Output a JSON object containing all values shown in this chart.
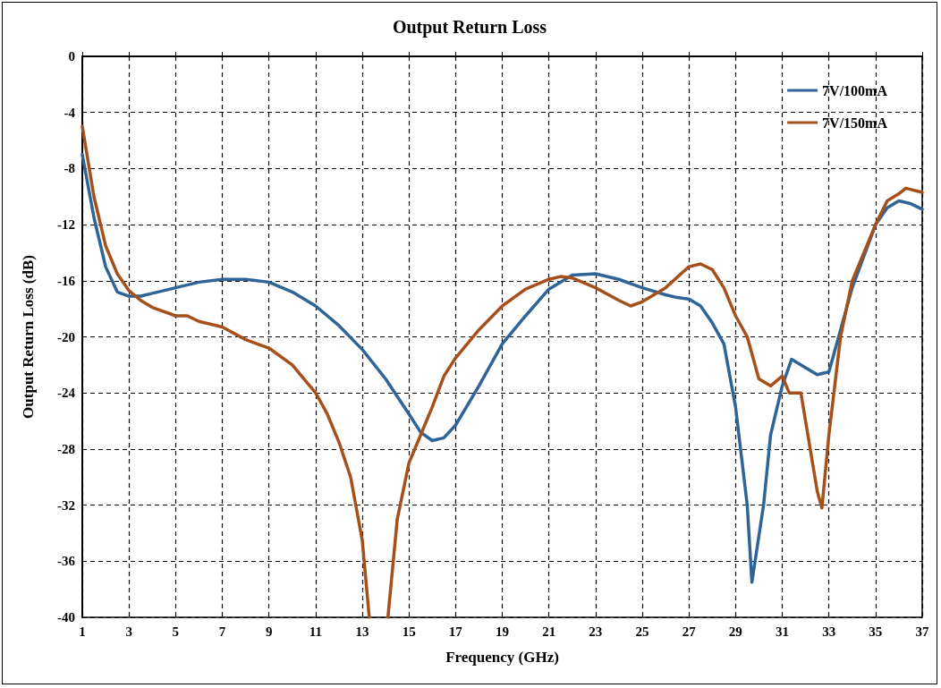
{
  "chart_data": {
    "type": "line",
    "title": "Output Return Loss",
    "xlabel": "Frequency (GHz)",
    "ylabel": "Output Return Loss (dB)",
    "xlim": [
      1,
      37
    ],
    "xticks": [
      1,
      3,
      5,
      7,
      9,
      11,
      13,
      15,
      17,
      19,
      21,
      23,
      25,
      27,
      29,
      31,
      33,
      35,
      37
    ],
    "ylim": [
      -40,
      0
    ],
    "yticks": [
      -40,
      -36,
      -32,
      -28,
      -24,
      -20,
      -16,
      -12,
      -8,
      -4,
      0
    ],
    "grid": true,
    "legend": "top right",
    "marker": "none",
    "line_style": "solid",
    "series": [
      {
        "name": "7V/100mA",
        "color": "#2e6496",
        "x": [
          1,
          1.5,
          2,
          2.5,
          3,
          3.5,
          4,
          5,
          6,
          7,
          8,
          9,
          10,
          11,
          12,
          13,
          14,
          15,
          15.5,
          16,
          16.5,
          17,
          18,
          19,
          20,
          21,
          22,
          23,
          24,
          25,
          26,
          26.5,
          27,
          27.5,
          28,
          28.5,
          29,
          29.5,
          29.7,
          30.2,
          30.5,
          31,
          31.4,
          32,
          32.5,
          33,
          33.5,
          34,
          35,
          35.5,
          36,
          36.5,
          37
        ],
        "values": [
          -7,
          -11.5,
          -15,
          -16.8,
          -17.1,
          -17.1,
          -16.9,
          -16.5,
          -16.1,
          -15.9,
          -15.9,
          -16.1,
          -16.8,
          -17.8,
          -19.2,
          -20.9,
          -23,
          -25.5,
          -26.8,
          -27.4,
          -27.2,
          -26.3,
          -23.5,
          -20.5,
          -18.5,
          -16.6,
          -15.6,
          -15.5,
          -15.9,
          -16.5,
          -17,
          -17.2,
          -17.3,
          -17.8,
          -19,
          -20.5,
          -25,
          -32,
          -37.5,
          -32,
          -27,
          -23.5,
          -21.6,
          -22.2,
          -22.7,
          -22.5,
          -19.5,
          -16.5,
          -12,
          -10.8,
          -10.3,
          -10.5,
          -10.9
        ]
      },
      {
        "name": "7V/150mA",
        "color": "#a5501a",
        "x": [
          1,
          1.5,
          2,
          2.5,
          3,
          3.5,
          4,
          5,
          5.5,
          6,
          7,
          8,
          9,
          10,
          11,
          11.5,
          12,
          12.5,
          13,
          13.3,
          13.7,
          14.1,
          14.5,
          15,
          15.5,
          16,
          16.5,
          17,
          18,
          19,
          20,
          21,
          21.5,
          22,
          23,
          24,
          24.5,
          25,
          26,
          27,
          27.5,
          28,
          28.5,
          29,
          29.5,
          30,
          30.5,
          31,
          31.3,
          31.8,
          32.2,
          32.5,
          32.7,
          33,
          33.5,
          34,
          35,
          35.5,
          36,
          36.3,
          37
        ],
        "values": [
          -5,
          -10,
          -13.5,
          -15.5,
          -16.7,
          -17.4,
          -17.9,
          -18.5,
          -18.5,
          -18.9,
          -19.3,
          -20.2,
          -20.8,
          -22,
          -24,
          -25.5,
          -27.5,
          -30,
          -34.5,
          -40,
          null,
          -40,
          -33,
          -29,
          -27,
          -25,
          -22.8,
          -21.5,
          -19.5,
          -17.8,
          -16.6,
          -15.9,
          -15.7,
          -15.8,
          -16.5,
          -17.4,
          -17.8,
          -17.5,
          -16.5,
          -15,
          -14.8,
          -15.2,
          -16.5,
          -18.5,
          -20,
          -23,
          -23.5,
          -22.8,
          -24,
          -24,
          -28,
          -31,
          -32.2,
          -27,
          -20,
          -16,
          -12,
          -10.3,
          -9.8,
          -9.4,
          -9.7
        ]
      }
    ]
  }
}
